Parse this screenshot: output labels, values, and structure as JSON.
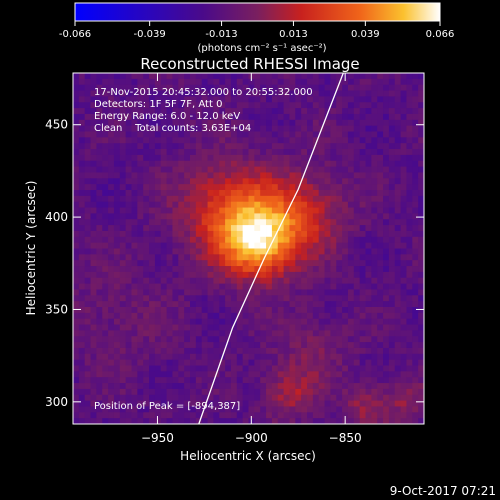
{
  "colorbar": {
    "ticks": [
      "-0.066",
      "-0.039",
      "-0.013",
      "0.013",
      "0.039",
      "0.066"
    ],
    "tick_values": [
      -0.066,
      -0.039,
      -0.013,
      0.013,
      0.039,
      0.066
    ],
    "label": "(photons cm⁻² s⁻¹ asec⁻²)",
    "range": [
      -0.066,
      0.066
    ],
    "colormap": "blue-purple-red-orange-yellow-white"
  },
  "chart_data": {
    "type": "heatmap",
    "title": "Reconstructed RHESSI Image",
    "xlabel": "Heliocentric X (arcsec)",
    "ylabel": "Heliocentric Y (arcsec)",
    "xlim": [
      -995,
      -808
    ],
    "ylim": [
      288,
      478
    ],
    "xticks": [
      -950,
      -900,
      -850
    ],
    "yticks": [
      300,
      350,
      400,
      450
    ],
    "xtick_labels": [
      "−950",
      "−900",
      "−850"
    ],
    "ytick_labels": [
      "300",
      "350",
      "400",
      "450"
    ],
    "annotations": [
      "17-Nov-2015 20:45:32.000 to 20:55:32.000",
      "Detectors: 1F 5F 7F, Att 0",
      "Energy Range: 6.0 - 12.0 keV",
      "Clean    Total counts: 3.63E+04"
    ],
    "peak_label": "Position of Peak = [-894,387]",
    "peak": [
      -894,
      387
    ],
    "sources": [
      {
        "x": -896,
        "y": 387,
        "value": 0.066
      },
      {
        "x": -913,
        "y": 405,
        "value": 0.035
      },
      {
        "x": -872,
        "y": 403,
        "value": 0.028
      },
      {
        "x": -867,
        "y": 330,
        "value": 0.012
      },
      {
        "x": -880,
        "y": 305,
        "value": 0.022
      },
      {
        "x": -838,
        "y": 298,
        "value": 0.02
      },
      {
        "x": -817,
        "y": 300,
        "value": 0.015
      },
      {
        "x": -975,
        "y": 345,
        "value": 0.008
      }
    ],
    "limb_curve": [
      [
        -928,
        288
      ],
      [
        -910,
        340
      ],
      [
        -893,
        378
      ],
      [
        -875,
        415
      ],
      [
        -851,
        478
      ]
    ]
  },
  "footer": {
    "date": "9-Oct-2017 07:21"
  }
}
